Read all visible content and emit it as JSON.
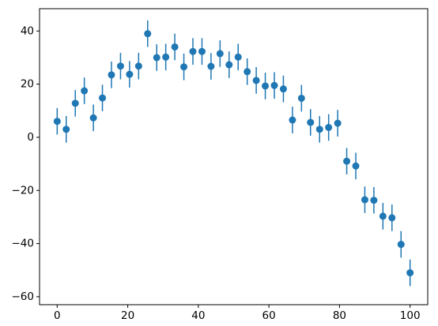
{
  "chart_data": {
    "type": "errorbar",
    "color": "#1f77b4",
    "x": [
      0,
      2.56,
      5.13,
      7.69,
      10.26,
      12.82,
      15.38,
      17.95,
      20.51,
      23.08,
      25.64,
      28.21,
      30.77,
      33.33,
      35.9,
      38.46,
      41.03,
      43.59,
      46.15,
      48.72,
      51.28,
      53.85,
      56.41,
      58.97,
      61.54,
      64.1,
      66.67,
      69.23,
      71.79,
      74.36,
      76.92,
      79.49,
      82.05,
      84.62,
      87.18,
      89.74,
      92.31,
      94.87,
      97.44,
      100
    ],
    "values": [
      6,
      3,
      12.8,
      17.5,
      7.3,
      14.8,
      23.5,
      26.8,
      23.7,
      26.8,
      39,
      30,
      30.2,
      34,
      26.5,
      32.3,
      32.3,
      26.7,
      31.5,
      27.3,
      30.2,
      24.7,
      21.4,
      19.3,
      19.5,
      18.2,
      6.5,
      14.7,
      5.6,
      3,
      3.7,
      5.3,
      -9,
      -10.8,
      -23.5,
      -23.7,
      -29.7,
      -30.3,
      -40.3,
      -51
    ],
    "errors": [
      5,
      5,
      5,
      5,
      5,
      5,
      5,
      5,
      5,
      5,
      5,
      5,
      5,
      5,
      5,
      5,
      5,
      5,
      5,
      5,
      5,
      5,
      5,
      5,
      5,
      5,
      5,
      5,
      5,
      5,
      5,
      5,
      5,
      5,
      5,
      5,
      5,
      5,
      5,
      5
    ],
    "xlim": [
      -5,
      105
    ],
    "xticks": [
      0,
      20,
      40,
      60,
      80,
      100
    ],
    "ylim": [
      -63,
      48.4
    ],
    "yticks": [
      {
        "value": -60,
        "label": "−60"
      },
      {
        "value": -40,
        "label": "−40"
      },
      {
        "value": -20,
        "label": "−20"
      },
      0,
      20,
      40
    ]
  }
}
